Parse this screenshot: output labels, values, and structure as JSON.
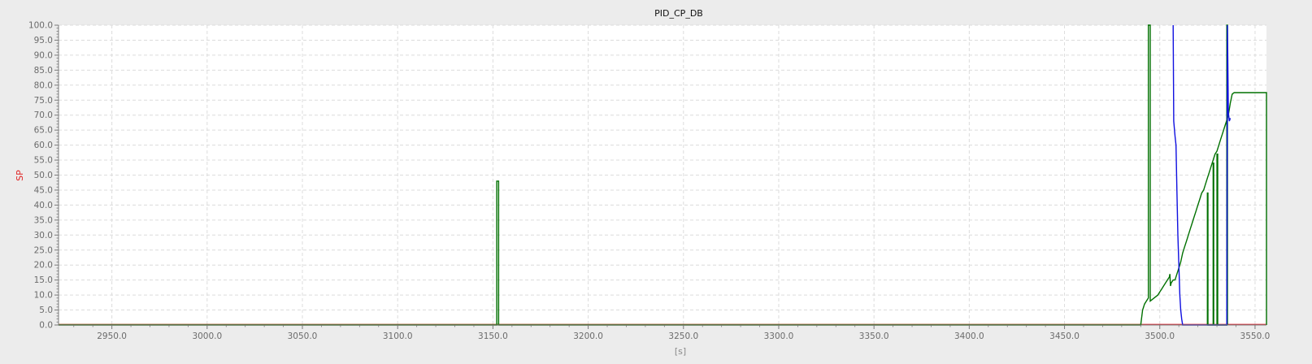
{
  "chart_data": {
    "type": "line",
    "title": "PID_CP_DB",
    "xlabel": "[s]",
    "ylabel": "SP",
    "ylabel_color": "#e02020",
    "xlim": [
      2922,
      3556
    ],
    "ylim": [
      0,
      100
    ],
    "x_ticks": [
      2950,
      3000,
      3050,
      3100,
      3150,
      3200,
      3250,
      3300,
      3350,
      3400,
      3450,
      3500,
      3550
    ],
    "x_tick_labels": [
      "2950.0",
      "3000.0",
      "3050.0",
      "3100.0",
      "3150.0",
      "3200.0",
      "3250.0",
      "3300.0",
      "3350.0",
      "3400.0",
      "3450.0",
      "3500.0",
      "3550.0"
    ],
    "y_ticks": [
      0,
      5,
      10,
      15,
      20,
      25,
      30,
      35,
      40,
      45,
      50,
      55,
      60,
      65,
      70,
      75,
      80,
      85,
      90,
      95,
      100
    ],
    "y_tick_labels": [
      "0.0",
      "5.0",
      "10.0",
      "15.0",
      "20.0",
      "25.0",
      "30.0",
      "35.0",
      "40.0",
      "45.0",
      "50.0",
      "55.0",
      "60.0",
      "65.0",
      "70.0",
      "75.0",
      "80.0",
      "85.0",
      "90.0",
      "95.0",
      "100.0"
    ],
    "grid": true,
    "colors": {
      "background": "#ececec",
      "plot_area": "#ffffff",
      "grid": "#dcdcdc",
      "axis": "#7a7a7a"
    },
    "series": [
      {
        "color": "#a0521e",
        "x": [
          2922,
          3491
        ],
        "y": [
          0.2,
          0.2
        ]
      },
      {
        "color": "#e0303c",
        "x": [
          3491,
          3556
        ],
        "y": [
          0.2,
          0.2
        ]
      },
      {
        "color": "#007000",
        "x": [
          2922,
          3152,
          3152,
          3153,
          3153,
          3490,
          3491,
          3492,
          3493,
          3494,
          3494,
          3495,
          3495,
          3497,
          3499,
          3500,
          3501,
          3502,
          3503,
          3504,
          3505,
          3505.3,
          3505.6,
          3506,
          3507,
          3508,
          3509,
          3510,
          3511,
          3512,
          3513,
          3514,
          3515,
          3516,
          3517,
          3518,
          3519,
          3520,
          3521,
          3522,
          3523,
          3524,
          3525,
          3526,
          3527,
          3528,
          3529,
          3530,
          3531,
          3532,
          3533,
          3534,
          3535,
          3536,
          3537,
          3538,
          3539,
          3540,
          3556,
          3556
        ],
        "y": [
          0,
          0,
          48,
          48,
          0,
          0,
          5,
          7,
          8,
          9,
          100,
          100,
          8,
          9,
          10,
          11,
          12,
          13,
          14,
          15,
          16,
          17,
          13,
          14,
          15,
          15,
          17,
          19,
          21,
          24,
          26,
          28,
          30,
          32,
          34,
          36,
          38,
          40,
          42,
          44,
          45,
          47,
          49,
          51,
          53,
          55,
          57,
          58,
          60,
          62,
          64,
          66,
          68,
          70,
          74,
          77,
          77.5,
          77.5,
          77.5,
          0
        ]
      },
      {
        "color": "#007000",
        "x": [
          3525,
          3525,
          3525.3,
          3525.3,
          3528,
          3528,
          3528.3,
          3528.3,
          3530,
          3530,
          3530.4,
          3530.4,
          3535.2,
          3535.2,
          3535.5,
          3535.5
        ],
        "y": [
          0,
          44,
          44,
          0,
          0,
          54,
          54,
          0,
          0,
          57,
          57,
          0,
          0,
          100,
          100,
          0
        ]
      },
      {
        "color": "#1010e0",
        "x": [
          3507,
          3507.3,
          3508,
          3508.5,
          3509,
          3509.5,
          3510,
          3510.5,
          3511,
          3511.5,
          3512,
          3535.2,
          3535.5,
          3536,
          3536.5,
          3537
        ],
        "y": [
          100,
          68,
          63,
          60,
          45,
          30,
          20,
          10,
          5,
          2,
          0,
          0,
          100,
          71,
          68,
          69
        ]
      }
    ]
  }
}
